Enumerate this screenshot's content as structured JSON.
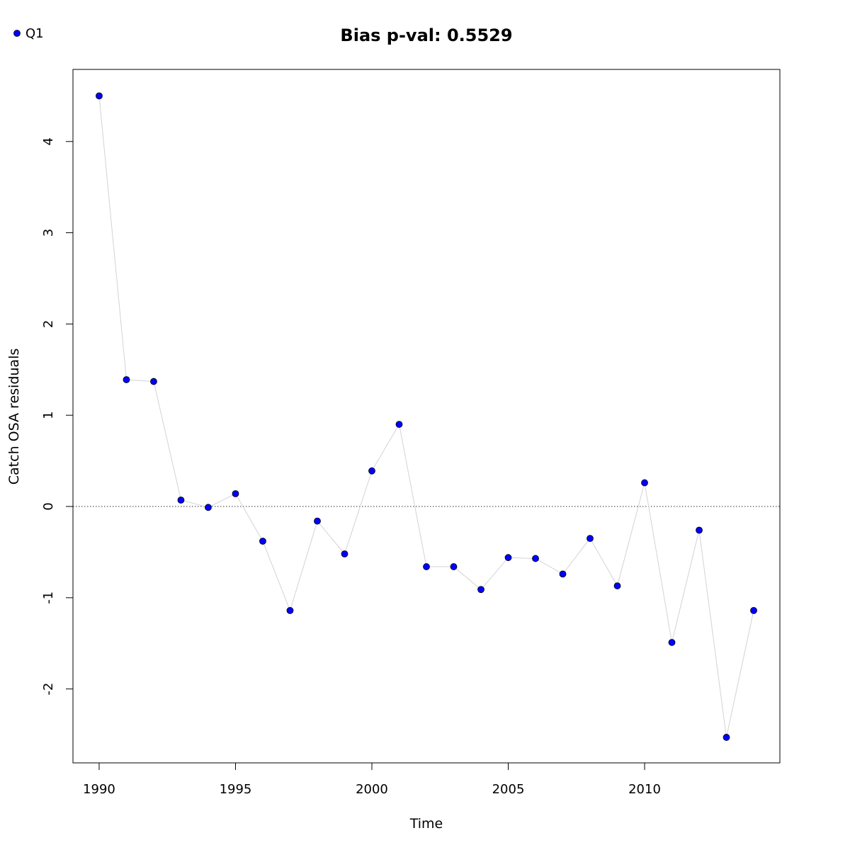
{
  "chart_data": {
    "type": "scatter",
    "title": "Bias p-val: 0.5529",
    "title_color": "#228B22",
    "xlabel": "Time",
    "ylabel": "Catch OSA residuals",
    "xlim": [
      1989.04,
      2014.96
    ],
    "ylim": [
      -2.81,
      4.79
    ],
    "x_ticks": [
      1990,
      1995,
      2000,
      2005,
      2010
    ],
    "y_ticks": [
      -2,
      -1,
      0,
      1,
      2,
      3,
      4
    ],
    "reference_line": {
      "y": 0,
      "style": "dotted"
    },
    "connecting_line_color": "#d3d3d3",
    "point_color": "#0000ff",
    "point_outline_color": "#000000",
    "legend": {
      "position": "top-left",
      "entries": [
        "Q1"
      ]
    },
    "series": [
      {
        "name": "Q1",
        "x": [
          1990,
          1991,
          1992,
          1993,
          1994,
          1995,
          1996,
          1997,
          1998,
          1999,
          2000,
          2001,
          2002,
          2003,
          2004,
          2005,
          2006,
          2007,
          2008,
          2009,
          2010,
          2011,
          2012,
          2013,
          2014
        ],
        "y": [
          4.5,
          1.39,
          1.37,
          0.07,
          -0.01,
          0.14,
          -0.38,
          -1.14,
          -0.16,
          -0.52,
          0.39,
          0.9,
          -0.66,
          -0.66,
          -0.91,
          -0.56,
          -0.57,
          -0.74,
          -0.35,
          -0.87,
          0.26,
          -1.49,
          -0.26,
          -2.53,
          -1.14
        ]
      }
    ]
  }
}
